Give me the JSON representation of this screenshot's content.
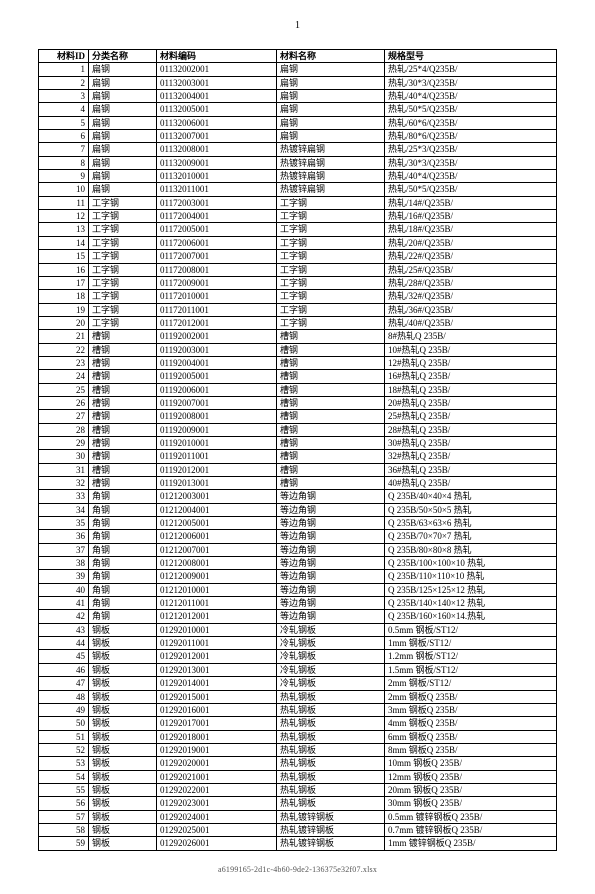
{
  "page_number": "1",
  "footer_filename": "a6199165-2d1c-4b60-9de2-136375e32f07.xlsx",
  "table": {
    "columns": [
      "材料ID",
      "分类名称",
      "材料编码",
      "材料名称",
      "规格型号"
    ],
    "rows": [
      [
        "1",
        "扁钢",
        "01132002001",
        "扁钢",
        "热轧/25*4/Q235B/"
      ],
      [
        "2",
        "扁钢",
        "01132003001",
        "扁钢",
        "热轧/30*3/Q235B/"
      ],
      [
        "3",
        "扁钢",
        "01132004001",
        "扁钢",
        "热轧/40*4/Q235B/"
      ],
      [
        "4",
        "扁钢",
        "01132005001",
        "扁钢",
        "热轧/50*5/Q235B/"
      ],
      [
        "5",
        "扁钢",
        "01132006001",
        "扁钢",
        "热轧/60*6/Q235B/"
      ],
      [
        "6",
        "扁钢",
        "01132007001",
        "扁钢",
        "热轧/80*6/Q235B/"
      ],
      [
        "7",
        "扁钢",
        "01132008001",
        "热镀锌扁钢",
        "热轧/25*3/Q235B/"
      ],
      [
        "8",
        "扁钢",
        "01132009001",
        "热镀锌扁钢",
        "热轧/30*3/Q235B/"
      ],
      [
        "9",
        "扁钢",
        "01132010001",
        "热镀锌扁钢",
        "热轧/40*4/Q235B/"
      ],
      [
        "10",
        "扁钢",
        "01132011001",
        "热镀锌扁钢",
        "热轧/50*5/Q235B/"
      ],
      [
        "11",
        "工字钢",
        "01172003001",
        "工字钢",
        "热轧/14#/Q235B/"
      ],
      [
        "12",
        "工字钢",
        "01172004001",
        "工字钢",
        "热轧/16#/Q235B/"
      ],
      [
        "13",
        "工字钢",
        "01172005001",
        "工字钢",
        "热轧/18#/Q235B/"
      ],
      [
        "14",
        "工字钢",
        "01172006001",
        "工字钢",
        "热轧/20#/Q235B/"
      ],
      [
        "15",
        "工字钢",
        "01172007001",
        "工字钢",
        "热轧/22#/Q235B/"
      ],
      [
        "16",
        "工字钢",
        "01172008001",
        "工字钢",
        "热轧/25#/Q235B/"
      ],
      [
        "17",
        "工字钢",
        "01172009001",
        "工字钢",
        "热轧/28#/Q235B/"
      ],
      [
        "18",
        "工字钢",
        "01172010001",
        "工字钢",
        "热轧/32#/Q235B/"
      ],
      [
        "19",
        "工字钢",
        "01172011001",
        "工字钢",
        "热轧/36#/Q235B/"
      ],
      [
        "20",
        "工字钢",
        "01172012001",
        "工字钢",
        "热轧/40#/Q235B/"
      ],
      [
        "21",
        "槽钢",
        "01192002001",
        "槽钢",
        "8#热轧Q 235B/"
      ],
      [
        "22",
        "槽钢",
        "01192003001",
        "槽钢",
        "10#热轧Q 235B/"
      ],
      [
        "23",
        "槽钢",
        "01192004001",
        "槽钢",
        "12#热轧Q 235B/"
      ],
      [
        "24",
        "槽钢",
        "01192005001",
        "槽钢",
        "16#热轧Q 235B/"
      ],
      [
        "25",
        "槽钢",
        "01192006001",
        "槽钢",
        "18#热轧Q 235B/"
      ],
      [
        "26",
        "槽钢",
        "01192007001",
        "槽钢",
        "20#热轧Q 235B/"
      ],
      [
        "27",
        "槽钢",
        "01192008001",
        "槽钢",
        "25#热轧Q 235B/"
      ],
      [
        "28",
        "槽钢",
        "01192009001",
        "槽钢",
        "28#热轧Q 235B/"
      ],
      [
        "29",
        "槽钢",
        "01192010001",
        "槽钢",
        "30#热轧Q 235B/"
      ],
      [
        "30",
        "槽钢",
        "01192011001",
        "槽钢",
        "32#热轧Q 235B/"
      ],
      [
        "31",
        "槽钢",
        "01192012001",
        "槽钢",
        "36#热轧Q 235B/"
      ],
      [
        "32",
        "槽钢",
        "01192013001",
        "槽钢",
        "40#热轧Q 235B/"
      ],
      [
        "33",
        "角钢",
        "01212003001",
        "等边角钢",
        "Q 235B/40×40×4 热轧"
      ],
      [
        "34",
        "角钢",
        "01212004001",
        "等边角钢",
        "Q 235B/50×50×5 热轧"
      ],
      [
        "35",
        "角钢",
        "01212005001",
        "等边角钢",
        "Q 235B/63×63×6 热轧"
      ],
      [
        "36",
        "角钢",
        "01212006001",
        "等边角钢",
        "Q 235B/70×70×7 热轧"
      ],
      [
        "37",
        "角钢",
        "01212007001",
        "等边角钢",
        "Q 235B/80×80×8 热轧"
      ],
      [
        "38",
        "角钢",
        "01212008001",
        "等边角钢",
        "Q 235B/100×100×10 热轧"
      ],
      [
        "39",
        "角钢",
        "01212009001",
        "等边角钢",
        "Q 235B/110×110×10 热轧"
      ],
      [
        "40",
        "角钢",
        "01212010001",
        "等边角钢",
        "Q 235B/125×125×12 热轧"
      ],
      [
        "41",
        "角钢",
        "01212011001",
        "等边角钢",
        "Q 235B/140×140×12 热轧"
      ],
      [
        "42",
        "角钢",
        "01212012001",
        "等边角钢",
        "Q 235B/160×160×14.热轧"
      ],
      [
        "43",
        "钢板",
        "01292010001",
        "冷轧钢板",
        "0.5mm 钢板/ST12/"
      ],
      [
        "44",
        "钢板",
        "01292011001",
        "冷轧钢板",
        "1mm 钢板/ST12/"
      ],
      [
        "45",
        "钢板",
        "01292012001",
        "冷轧钢板",
        "1.2mm 钢板/ST12/"
      ],
      [
        "46",
        "钢板",
        "01292013001",
        "冷轧钢板",
        "1.5mm 钢板/ST12/"
      ],
      [
        "47",
        "钢板",
        "01292014001",
        "冷轧钢板",
        "2mm 钢板/ST12/"
      ],
      [
        "48",
        "钢板",
        "01292015001",
        "热轧钢板",
        "2mm 钢板Q 235B/"
      ],
      [
        "49",
        "钢板",
        "01292016001",
        "热轧钢板",
        "3mm 钢板Q 235B/"
      ],
      [
        "50",
        "钢板",
        "01292017001",
        "热轧钢板",
        "4mm 钢板Q 235B/"
      ],
      [
        "51",
        "钢板",
        "01292018001",
        "热轧钢板",
        "6mm 钢板Q 235B/"
      ],
      [
        "52",
        "钢板",
        "01292019001",
        "热轧钢板",
        "8mm 钢板Q 235B/"
      ],
      [
        "53",
        "钢板",
        "01292020001",
        "热轧钢板",
        "10mm 钢板Q 235B/"
      ],
      [
        "54",
        "钢板",
        "01292021001",
        "热轧钢板",
        "12mm 钢板Q 235B/"
      ],
      [
        "55",
        "钢板",
        "01292022001",
        "热轧钢板",
        "20mm 钢板Q 235B/"
      ],
      [
        "56",
        "钢板",
        "01292023001",
        "热轧钢板",
        "30mm 钢板Q 235B/"
      ],
      [
        "57",
        "钢板",
        "01292024001",
        "热轧镀锌钢板",
        "0.5mm 镀锌钢板Q 235B/"
      ],
      [
        "58",
        "钢板",
        "01292025001",
        "热轧镀锌钢板",
        "0.7mm 镀锌钢板Q 235B/"
      ],
      [
        "59",
        "钢板",
        "01292026001",
        "热轧镀锌钢板",
        "1mm 镀锌钢板Q 235B/"
      ]
    ]
  }
}
